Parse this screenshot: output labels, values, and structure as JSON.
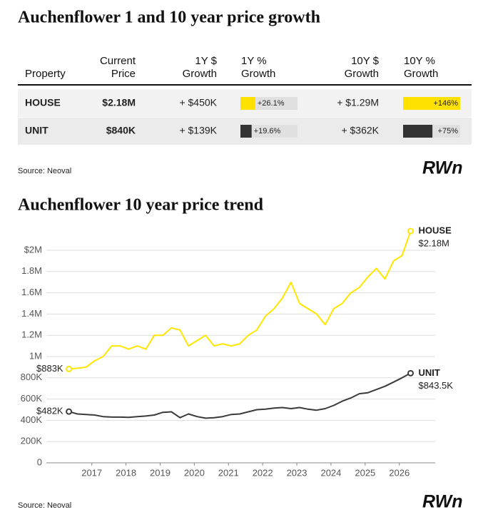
{
  "table": {
    "title": "Auchenflower 1 and 10 year price growth",
    "headers": [
      [
        "Property"
      ],
      [
        "Current",
        "Price"
      ],
      [
        "1Y $",
        "Growth"
      ],
      [
        "1Y %",
        "Growth"
      ],
      [
        "10Y $",
        "Growth"
      ],
      [
        "10Y %",
        "Growth"
      ]
    ],
    "rows": [
      {
        "property": "HOUSE",
        "price": "$2.18M",
        "growth_1y": "+ $450K",
        "pct_1y": 26.1,
        "pct_1y_label": "+26.1%",
        "growth_10y": "+ $1.29M",
        "pct_10y": 146,
        "pct_10y_label": "+146%",
        "color": "#ffe100"
      },
      {
        "property": "UNIT",
        "price": "$840K",
        "growth_1y": "+ $139K",
        "pct_1y": 19.6,
        "pct_1y_label": "+19.6%",
        "growth_10y": "+ $362K",
        "pct_10y": 75,
        "pct_10y_label": "+75%",
        "color": "#333333"
      }
    ],
    "source": "Source: Neoval",
    "logo": "RWn"
  },
  "chart_data": {
    "type": "line",
    "title": "Auchenflower 10 year price trend",
    "source": "Source: Neoval",
    "logo": "RWn",
    "x": [
      2016.33,
      2016.58,
      2016.83,
      2017.08,
      2017.33,
      2017.58,
      2017.83,
      2018.08,
      2018.33,
      2018.58,
      2018.83,
      2019.08,
      2019.33,
      2019.58,
      2019.83,
      2020.08,
      2020.33,
      2020.58,
      2020.83,
      2021.08,
      2021.33,
      2021.58,
      2021.83,
      2022.08,
      2022.33,
      2022.58,
      2022.83,
      2023.08,
      2023.33,
      2023.58,
      2023.83,
      2024.08,
      2024.33,
      2024.58,
      2024.83,
      2025.08,
      2025.33,
      2025.58,
      2025.83,
      2026.08,
      2026.33
    ],
    "series": [
      {
        "name": "HOUSE",
        "color": "#ffe600",
        "first_label": "$883K",
        "last_label": "$2.18M",
        "values": [
          883000,
          890000,
          900000,
          960000,
          1000000,
          1100000,
          1100000,
          1070000,
          1100000,
          1070000,
          1200000,
          1200000,
          1270000,
          1250000,
          1100000,
          1150000,
          1200000,
          1100000,
          1120000,
          1100000,
          1120000,
          1200000,
          1250000,
          1380000,
          1450000,
          1550000,
          1700000,
          1500000,
          1450000,
          1400000,
          1300000,
          1450000,
          1500000,
          1600000,
          1650000,
          1750000,
          1830000,
          1730000,
          1900000,
          1950000,
          2180000
        ]
      },
      {
        "name": "UNIT",
        "color": "#3a3a3a",
        "first_label": "$482K",
        "last_label": "$843.5K",
        "values": [
          482000,
          460000,
          455000,
          450000,
          435000,
          430000,
          430000,
          428000,
          435000,
          440000,
          450000,
          475000,
          480000,
          425000,
          460000,
          435000,
          420000,
          425000,
          435000,
          455000,
          460000,
          480000,
          500000,
          505000,
          515000,
          520000,
          510000,
          520000,
          505000,
          495000,
          510000,
          540000,
          580000,
          610000,
          650000,
          660000,
          690000,
          720000,
          760000,
          800000,
          843500
        ]
      }
    ],
    "xlim": [
      2015.67,
      2027.05
    ],
    "xticks": [
      2017,
      2018,
      2019,
      2020,
      2021,
      2022,
      2023,
      2024,
      2025,
      2026
    ],
    "ylim": [
      0,
      2200000
    ],
    "yticks": [
      0,
      {
        "value": 200000,
        "label": "200K"
      },
      {
        "value": 400000,
        "label": "400K"
      },
      {
        "value": 600000,
        "label": "600K"
      },
      {
        "value": 800000,
        "label": "800K"
      },
      {
        "value": 1000000,
        "label": "1M"
      },
      {
        "value": 1200000,
        "label": "1.2M"
      },
      {
        "value": 1400000,
        "label": "1.4M"
      },
      {
        "value": 1600000,
        "label": "1.6M"
      },
      {
        "value": 1800000,
        "label": "1.8M"
      },
      {
        "value": 2000000,
        "label": "$2M"
      }
    ],
    "grid": true
  }
}
